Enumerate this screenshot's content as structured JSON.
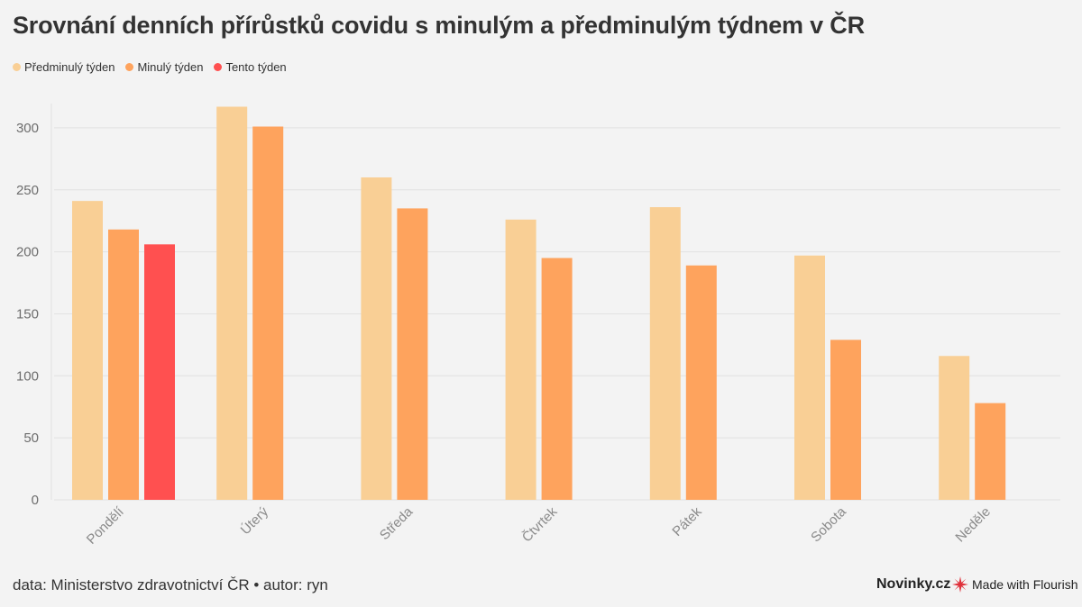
{
  "title": "Srovnání denních přírůstků covidu s minulým a předminulým týdnem v ČR",
  "footer": {
    "source": "data: Ministerstvo zdravotnictví ČR • autor: ryn",
    "brand": "Novinky.cz",
    "flourish": "Made with Flourish"
  },
  "chart_data": {
    "type": "bar",
    "categories": [
      "Pondělí",
      "Úterý",
      "Středa",
      "Čtvrtek",
      "Pátek",
      "Sobota",
      "Neděle"
    ],
    "series": [
      {
        "name": "Předminulý týden",
        "color": "#f9cf95",
        "values": [
          241,
          317,
          260,
          226,
          236,
          197,
          116
        ]
      },
      {
        "name": "Minulý týden",
        "color": "#fea35d",
        "values": [
          218,
          301,
          235,
          195,
          189,
          129,
          78
        ]
      },
      {
        "name": "Tento týden",
        "color": "#ff5050",
        "values": [
          206,
          null,
          null,
          null,
          null,
          null,
          null
        ]
      }
    ],
    "y_ticks": [
      0,
      50,
      100,
      150,
      200,
      250,
      300
    ],
    "ylim": [
      0,
      320
    ],
    "grid": true,
    "legend": "top-left"
  }
}
